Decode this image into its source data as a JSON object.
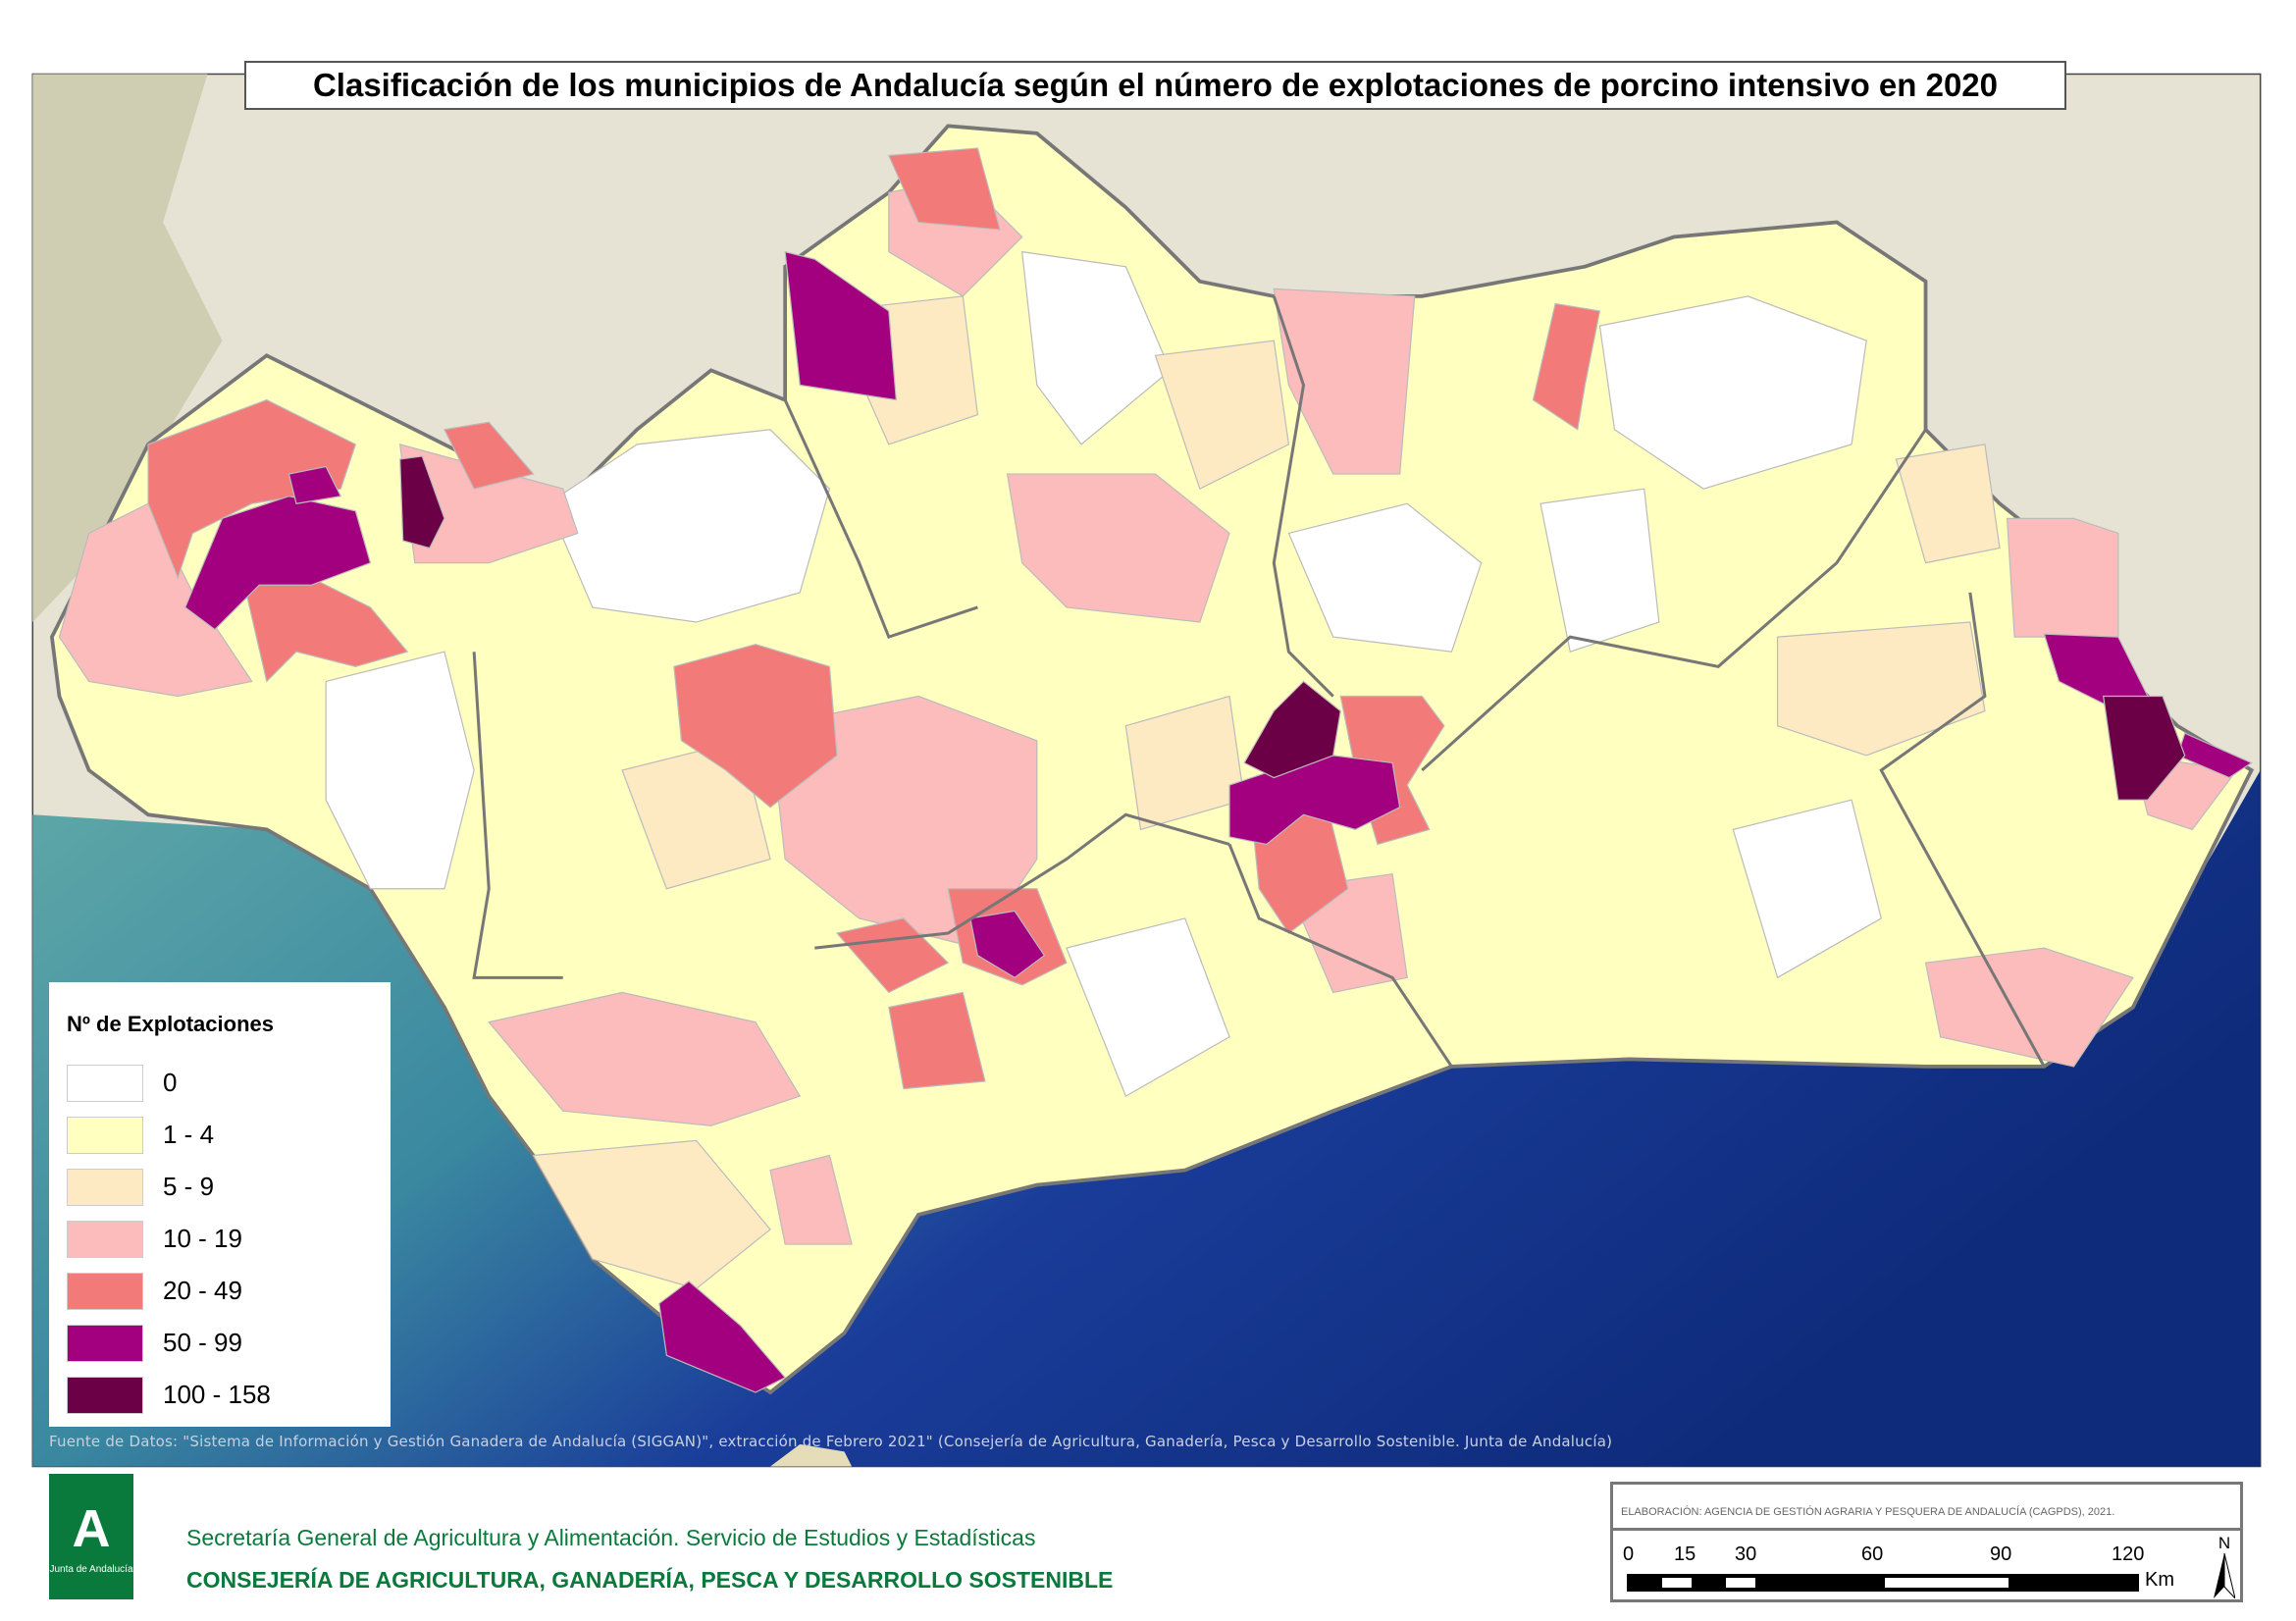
{
  "title": "Clasificación de los municipios de Andalucía según el número de explotaciones de porcino intensivo en 2020",
  "legend": {
    "title": "Nº de Explotaciones",
    "items": [
      {
        "label": "0",
        "color": "#ffffff"
      },
      {
        "label": "1 - 4",
        "color": "#ffffc0"
      },
      {
        "label": "5 - 9",
        "color": "#feeac2"
      },
      {
        "label": "10 - 19",
        "color": "#fcbcbc"
      },
      {
        "label": "20 - 49",
        "color": "#f27a78"
      },
      {
        "label": "50 - 99",
        "color": "#a3007f"
      },
      {
        "label": "100 - 158",
        "color": "#6b0047"
      }
    ]
  },
  "source": "Fuente de Datos: \"Sistema de Información y Gestión Ganadera de Andalucía (SIGGAN)\", extracción de Febrero 2021\" (Consejería de Agricultura, Ganadería, Pesca y Desarrollo Sostenible. Junta de Andalucía)",
  "logo_text": "Junta de Andalucía",
  "footer": {
    "secretaria": "Secretaría General de Agricultura y Alimentación. Servicio de Estudios y Estadísticas",
    "consejeria": "CONSEJERÍA DE AGRICULTURA, GANADERÍA, PESCA Y DESARROLLO SOSTENIBLE"
  },
  "scale": {
    "elaboracion": "ELABORACIÓN: AGENCIA DE GESTIÓN AGRARIA Y PESQUERA DE ANDALUCÍA (CAGPDS), 2021.",
    "ticks": [
      "0",
      "15",
      "30",
      "60",
      "90",
      "120"
    ],
    "unit": "Km",
    "north": "N"
  }
}
